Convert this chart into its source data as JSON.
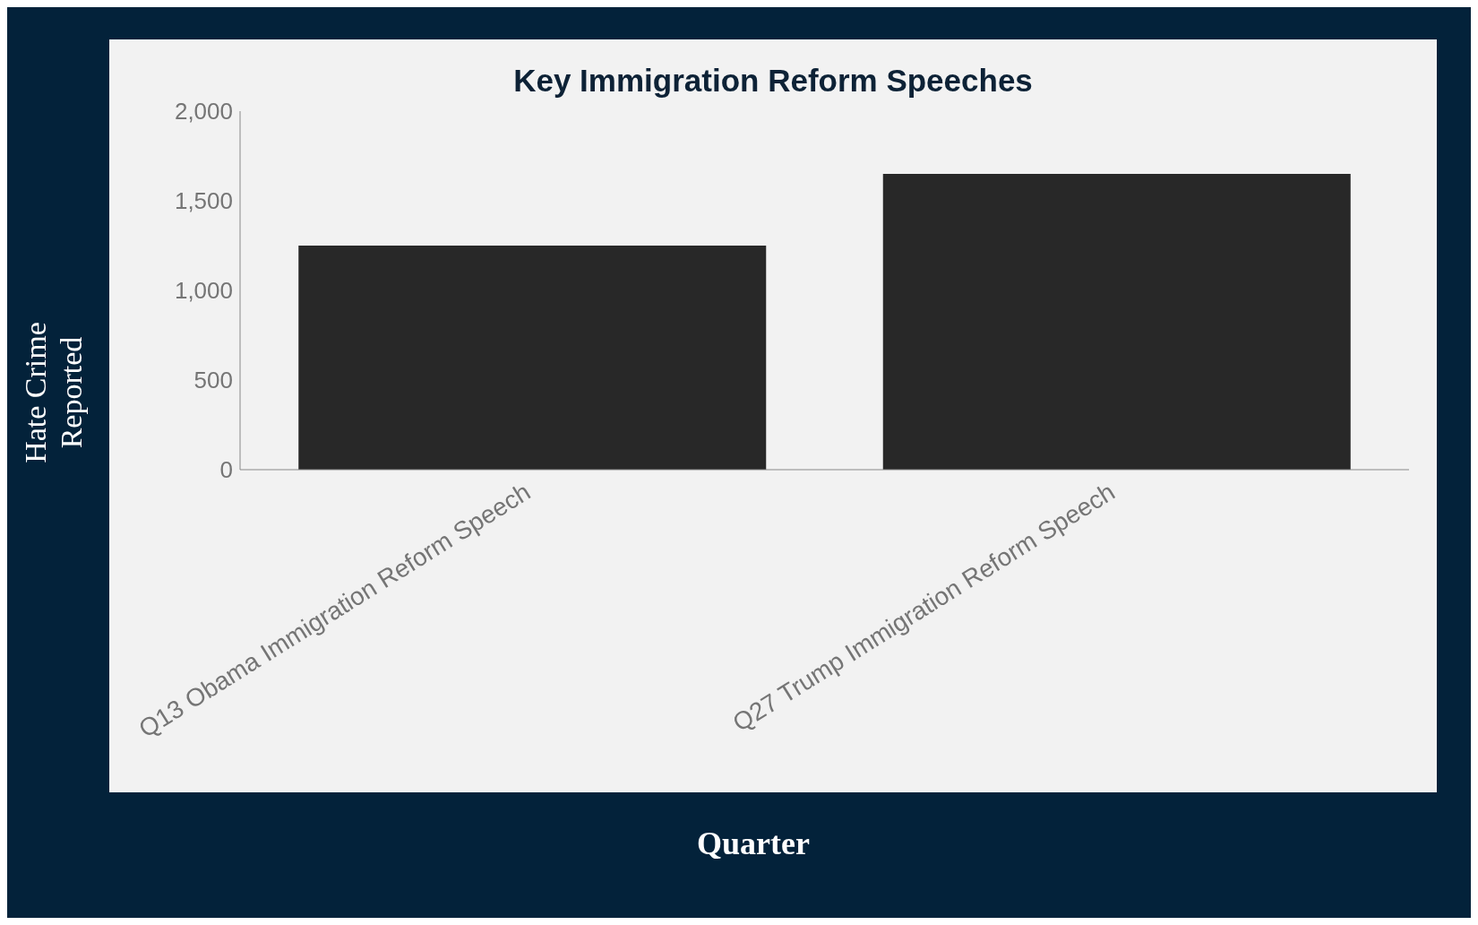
{
  "chart_data": {
    "type": "bar",
    "title": "Key Immigration Reform Speeches",
    "xlabel": "Quarter",
    "ylabel": "Hate Crime Reported",
    "categories": [
      "Q13 Obama Immigration Reform Speech",
      "Q27 Trump Immigration Reform Speech"
    ],
    "values": [
      1250,
      1650
    ],
    "color": "#282828",
    "ylim": [
      0,
      2000
    ],
    "yticks": [
      0,
      500,
      {
        "value": 1000,
        "label": "1,000"
      },
      {
        "value": 1500,
        "label": "1,500"
      },
      {
        "value": 2000,
        "label": "2,000"
      }
    ],
    "grid": false,
    "legend": false
  }
}
